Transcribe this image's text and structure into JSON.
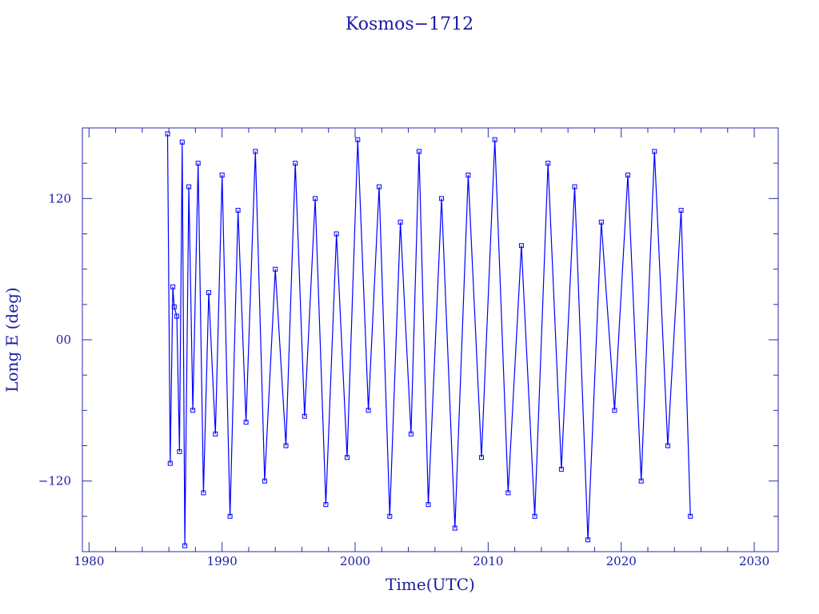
{
  "chart_data": {
    "type": "scatter",
    "title": "Kosmos−1712",
    "xlabel": "Time(UTC)",
    "ylabel": "Long E (deg)",
    "xlim": [
      1979.5,
      2031.8
    ],
    "ylim": [
      -180,
      180
    ],
    "x_ticks": [
      1980,
      1990,
      2000,
      2010,
      2020,
      2030
    ],
    "x_tick_labels": [
      "1980",
      "1990",
      "2000",
      "2010",
      "2020",
      "2030"
    ],
    "y_ticks": [
      -120,
      0,
      120
    ],
    "y_tick_labels": [
      "−120",
      "00",
      "120"
    ],
    "marker": "open-square",
    "line_connected": true,
    "color": "#0000ff",
    "series": [
      {
        "x": [
          1985.9,
          1986.1,
          1986.3,
          1986.4,
          1986.6,
          1986.8,
          1987.0,
          1987.2,
          1987.5,
          1987.8,
          1988.2,
          1988.6,
          1989.0,
          1989.5,
          1990.0,
          1990.6,
          1991.2,
          1991.8,
          1992.5,
          1993.2,
          1994.0,
          1994.8,
          1995.5,
          1996.2,
          1997.0,
          1997.8,
          1998.6,
          1999.4,
          2000.2,
          2001.0,
          2001.8,
          2002.6,
          2003.4,
          2004.2,
          2004.8,
          2005.5,
          2006.5,
          2007.5,
          2008.5,
          2009.5,
          2010.5,
          2011.5,
          2012.5,
          2013.5,
          2014.5,
          2015.5,
          2016.5,
          2017.5,
          2018.5,
          2019.5,
          2020.5,
          2021.5,
          2022.5,
          2023.5,
          2024.5,
          2025.2
        ],
        "y": [
          175,
          -105,
          45,
          28,
          20,
          -95,
          168,
          -175,
          130,
          -60,
          150,
          -130,
          40,
          -80,
          140,
          -150,
          110,
          -70,
          160,
          -120,
          60,
          -90,
          150,
          -65,
          120,
          -140,
          90,
          -100,
          170,
          -60,
          130,
          -150,
          100,
          -80,
          160,
          -140,
          120,
          -160,
          140,
          -100,
          170,
          -130,
          80,
          -150,
          150,
          -110,
          130,
          -170,
          100,
          -60,
          140,
          -120,
          160,
          -90,
          110,
          -150
        ]
      }
    ]
  }
}
